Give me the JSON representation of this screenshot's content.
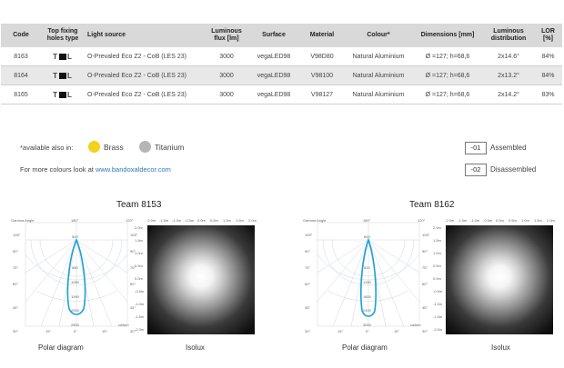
{
  "table": {
    "headers": [
      "Code",
      "Top fixing holes type",
      "Light source",
      "Luminous flux [lm]",
      "Surface",
      "Material",
      "Colour*",
      "Dimensions [mm]",
      "Luminous distribution",
      "LOR [%]"
    ],
    "rows": [
      {
        "code": "8163",
        "fix_left": "T",
        "fix_right": "L",
        "source": "O-Prevaled Eco Z2 - CoB (LES 23)",
        "flux": "3000",
        "surface": "vegaLED98",
        "material": "V98D80",
        "colour": "Natural Aluminium",
        "dimensions": "Ø =127; h=68,6",
        "distribution": "2x14.6°",
        "lor": "84%"
      },
      {
        "code": "8164",
        "fix_left": "T",
        "fix_right": "L",
        "source": "O-Prevaled Eco Z2 - CoB (LES 23)",
        "flux": "3000",
        "surface": "vegaLED98",
        "material": "V98100",
        "colour": "Natural Aluminium",
        "dimensions": "Ø =127; h=68,6",
        "distribution": "2x13.2°",
        "lor": "84%"
      },
      {
        "code": "8165",
        "fix_left": "T",
        "fix_right": "L",
        "source": "O-Prevaled Eco Z2 - CoB (LES 23)",
        "flux": "3000",
        "surface": "vegaLED98",
        "material": "V98127",
        "colour": "Natural Aluminium",
        "dimensions": "Ø =127; h=68,6",
        "distribution": "2x14.2°",
        "lor": "83%"
      }
    ]
  },
  "availability": {
    "label": "*available also in:",
    "options": [
      {
        "name": "Brass",
        "color": "#f2d21b"
      },
      {
        "name": "Titanium",
        "color": "#b5b5b5"
      }
    ],
    "more_text": "For more colours look at",
    "link": "www.bandoxaldecor.com"
  },
  "variants": [
    {
      "code": "-01",
      "label": "Assembled"
    },
    {
      "code": "-02",
      "label": "Disassembled"
    }
  ],
  "diagrams": [
    {
      "title": "Team 8153",
      "polar_caption": "Polar diagram",
      "isolux_caption": "Isolux",
      "gamma_label": "Gamma Angle",
      "top_angles": [
        "180°",
        "120°"
      ],
      "left_angles": [
        "105°",
        "90°",
        "75°",
        "60°",
        "45°"
      ],
      "right_angles": [
        "105°",
        "90°",
        "75°",
        "60°",
        "45°"
      ],
      "bottom_angles": [
        "30°",
        "15°",
        "0°",
        "15°",
        "30°"
      ],
      "radial_values": [
        "500",
        "580",
        "1080",
        "1590",
        "2000",
        "2500"
      ],
      "unit": "cd/klm",
      "isolux_x": [
        "-2.0m",
        "-1.5m",
        "-1.0m",
        "-0.5m",
        "0.0m",
        "0.5m",
        "1.0m",
        "1.5m",
        "2.0m"
      ],
      "isolux_y": [
        "2.0m",
        "1.5m",
        "1.0m",
        "0.5m",
        "0.0m",
        "-0.5m",
        "-1.0m",
        "-1.5m",
        "-2.0m"
      ]
    },
    {
      "title": "Team 8162",
      "polar_caption": "Polar diagram",
      "isolux_caption": "Isolux",
      "gamma_label": "Gamma Angle",
      "top_angles": [
        "180°",
        "120°"
      ],
      "left_angles": [
        "105°",
        "90°",
        "75°",
        "60°",
        "45°"
      ],
      "right_angles": [
        "105°",
        "90°",
        "75°",
        "60°",
        "45°"
      ],
      "bottom_angles": [
        "30°",
        "15°",
        "0°",
        "15°",
        "30°"
      ],
      "radial_values": [
        "600",
        "620",
        "1280",
        "1800",
        "2400",
        "3000"
      ],
      "unit": "cd/klm",
      "isolux_x": [
        "-2.0m",
        "-1.5m",
        "-1.0m",
        "-0.5m",
        "0.0m",
        "0.5m",
        "1.0m",
        "1.5m",
        "2.0m"
      ],
      "isolux_y": [
        "2.0m",
        "1.5m",
        "1.0m",
        "0.5m",
        "0.0m",
        "-0.5m",
        "-1.0m",
        "-1.5m",
        "-2.0m"
      ]
    }
  ],
  "colors": {
    "accent": "#1b9fd8",
    "link": "#2a7ab8",
    "header_bg": "#d9d9d9",
    "row_shade": "#e8e8e8"
  }
}
